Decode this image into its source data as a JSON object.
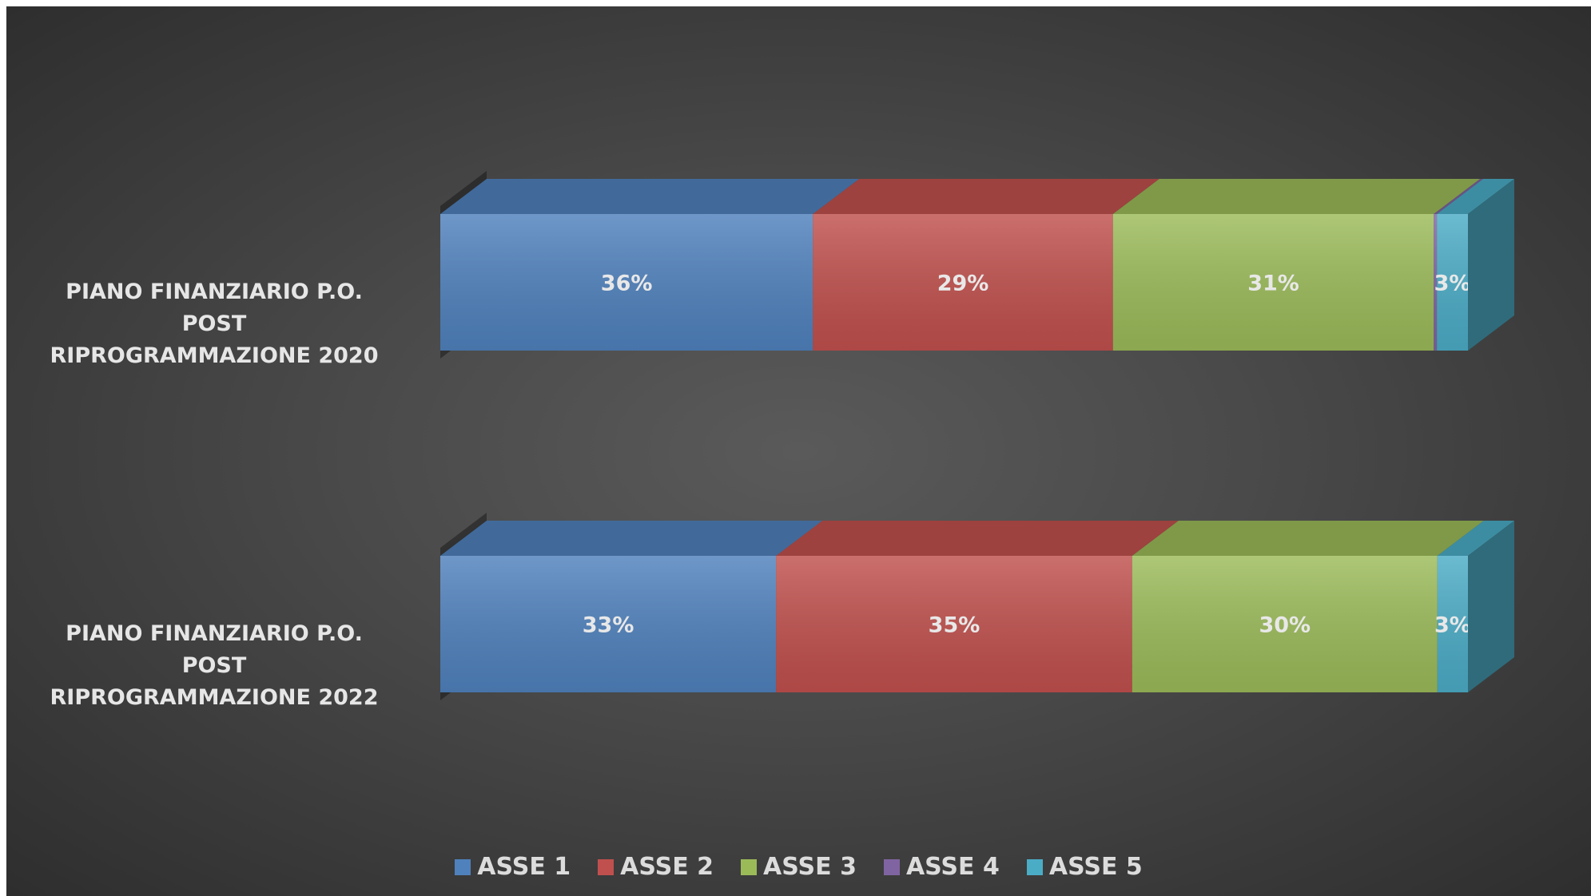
{
  "chart_data": {
    "type": "bar",
    "orientation": "horizontal",
    "stacked": "percent",
    "style": "3d",
    "categories": [
      "PIANO FINANZIARIO P.O. POST RIPROGRAMMAZIONE 2020",
      "PIANO FINANZIARIO P.O. POST RIPROGRAMMAZIONE 2022"
    ],
    "category_lines": [
      [
        "PIANO FINANZIARIO P.O. POST",
        "RIPROGRAMMAZIONE 2020"
      ],
      [
        "PIANO FINANZIARIO P.O. POST",
        "RIPROGRAMMAZIONE 2022"
      ]
    ],
    "series": [
      {
        "name": "ASSE 1",
        "values": [
          36,
          33
        ],
        "color": "#4f81bd"
      },
      {
        "name": "ASSE 2",
        "values": [
          29,
          35
        ],
        "color": "#c0504d"
      },
      {
        "name": "ASSE 3",
        "values": [
          31,
          30
        ],
        "color": "#9bbb59"
      },
      {
        "name": "ASSE 4",
        "values": [
          0.3,
          0
        ],
        "color": "#8064a2"
      },
      {
        "name": "ASSE 5",
        "values": [
          3,
          3
        ],
        "color": "#4bacc6"
      }
    ],
    "data_labels": [
      [
        "36%",
        "29%",
        "31%",
        "",
        "3%"
      ],
      [
        "33%",
        "35%",
        "30%",
        "",
        "3%"
      ]
    ],
    "xlim": [
      0,
      100
    ],
    "grid": false,
    "legend_position": "bottom"
  }
}
